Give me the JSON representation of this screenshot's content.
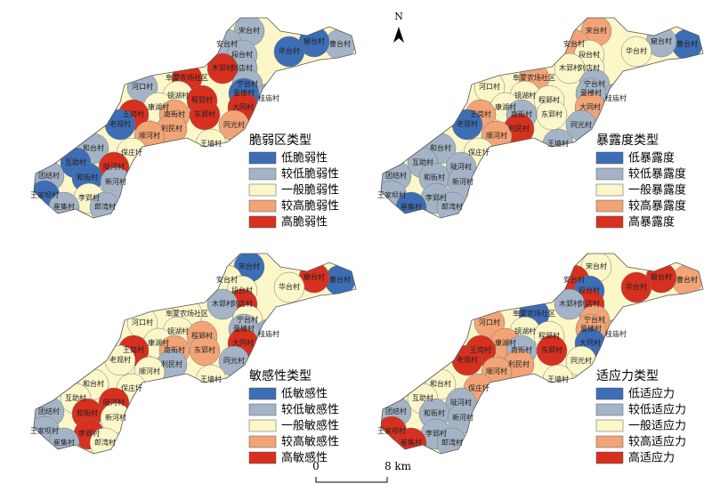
{
  "villages": [
    "宋台村",
    "安台村",
    "曹台村",
    "窟台村",
    "段台村",
    "华台村",
    "刘店村",
    "木郢村",
    "阜蒙农场社区",
    "宁台村",
    "桂庙村",
    "童楼村",
    "河口村",
    "镜湖村",
    "程郢村",
    "康湖村",
    "王岗村",
    "南街村",
    "东郢村",
    "大同村",
    "老观村",
    "利民村",
    "同光村",
    "顺河村",
    "王墙村",
    "和台村",
    "保庄圩",
    "互助村",
    "陡河村",
    "团结村",
    "和街村",
    "新河村",
    "王家坝村",
    "李郢村",
    "崔集村",
    "郎湾村"
  ],
  "north": "N",
  "scale": {
    "start": "0",
    "end": "8 km"
  },
  "class_colors": [
    "#3d6db5",
    "#a4b4c6",
    "#fbf7c9",
    "#f2a476",
    "#d7301f"
  ],
  "panels": [
    {
      "title": "脆弱区类型",
      "labels": [
        "低脆弱性",
        "较低脆弱性",
        "一般脆弱性",
        "较高脆弱性",
        "高脆弱性"
      ],
      "classes": [
        1,
        1,
        1,
        0,
        1,
        0,
        1,
        4,
        4,
        1,
        1,
        0,
        1,
        2,
        4,
        2,
        4,
        3,
        4,
        4,
        0,
        3,
        3,
        3,
        2,
        1,
        2,
        0,
        4,
        1,
        0,
        1,
        0,
        2,
        1,
        1
      ]
    },
    {
      "title": "暴露度类型",
      "labels": [
        "低暴露度",
        "较低暴露度",
        "一般暴露度",
        "较高暴露度",
        "高暴露度"
      ],
      "classes": [
        3,
        3,
        0,
        1,
        2,
        2,
        2,
        2,
        3,
        1,
        1,
        1,
        2,
        2,
        2,
        2,
        3,
        1,
        2,
        3,
        0,
        4,
        1,
        3,
        1,
        1,
        2,
        1,
        1,
        1,
        1,
        1,
        1,
        1,
        0,
        1
      ]
    },
    {
      "title": "敏感性类型",
      "labels": [
        "低敏感性",
        "较低敏感性",
        "一般敏感性",
        "较高敏感性",
        "高敏感性"
      ],
      "classes": [
        0,
        2,
        0,
        4,
        2,
        2,
        4,
        1,
        2,
        2,
        1,
        1,
        2,
        2,
        3,
        2,
        4,
        3,
        3,
        4,
        2,
        1,
        1,
        2,
        2,
        2,
        2,
        2,
        4,
        1,
        4,
        2,
        1,
        4,
        1,
        2
      ]
    },
    {
      "title": "适应力类型",
      "labels": [
        "低适应力",
        "较低适应力",
        "一般适应力",
        "较高适应力",
        "高适应力"
      ],
      "classes": [
        2,
        4,
        3,
        4,
        0,
        4,
        4,
        1,
        0,
        3,
        3,
        3,
        3,
        2,
        2,
        3,
        4,
        1,
        4,
        0,
        4,
        3,
        2,
        3,
        2,
        2,
        3,
        2,
        1,
        1,
        1,
        1,
        4,
        1,
        4,
        1
      ]
    }
  ]
}
